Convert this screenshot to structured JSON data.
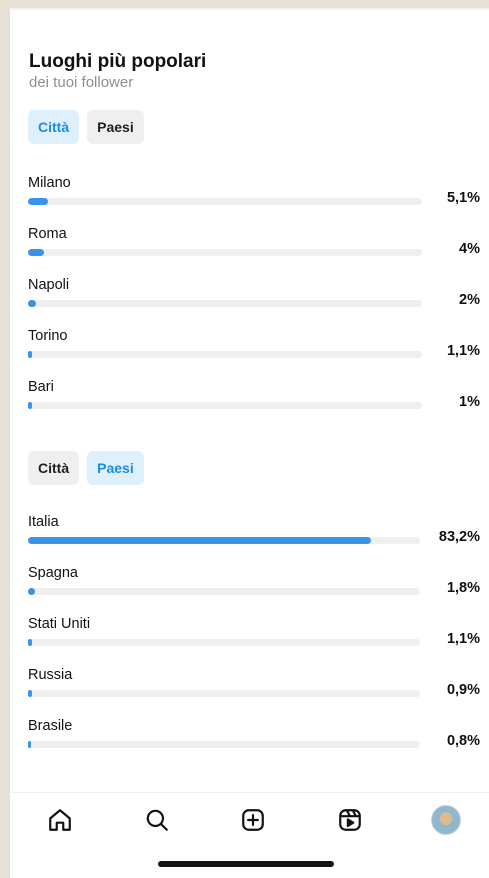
{
  "header": {
    "title": "Luoghi più popolari",
    "subtitle": "dei tuoi follower"
  },
  "cities_tabs": {
    "city_label": "Città",
    "country_label": "Paesi",
    "active": "city"
  },
  "cities": [
    {
      "label": "Milano",
      "pct_text": "5,1%",
      "value": 5.1
    },
    {
      "label": "Roma",
      "pct_text": "4%",
      "value": 4.0
    },
    {
      "label": "Napoli",
      "pct_text": "2%",
      "value": 2.0
    },
    {
      "label": "Torino",
      "pct_text": "1,1%",
      "value": 1.1
    },
    {
      "label": "Bari",
      "pct_text": "1%",
      "value": 1.0
    }
  ],
  "countries_tabs": {
    "city_label": "Città",
    "country_label": "Paesi",
    "active": "country"
  },
  "countries": [
    {
      "label": "Italia",
      "pct_text": "83,2%",
      "value": 83.2
    },
    {
      "label": "Spagna",
      "pct_text": "1,8%",
      "value": 1.8
    },
    {
      "label": "Stati Uniti",
      "pct_text": "1,1%",
      "value": 1.1
    },
    {
      "label": "Russia",
      "pct_text": "0,9%",
      "value": 0.9
    },
    {
      "label": "Brasile",
      "pct_text": "0,8%",
      "value": 0.8
    }
  ],
  "nav": {
    "items": [
      {
        "icon": "home-icon"
      },
      {
        "icon": "search-icon"
      },
      {
        "icon": "create-icon"
      },
      {
        "icon": "reels-icon"
      },
      {
        "icon": "profile-avatar"
      }
    ]
  },
  "colors": {
    "bar_fill": "#3a93e6",
    "bar_track": "#efefef",
    "tab_active_bg": "#dff0fd",
    "tab_active_text": "#1a8ddf",
    "tab_inactive_bg": "#efefef"
  }
}
